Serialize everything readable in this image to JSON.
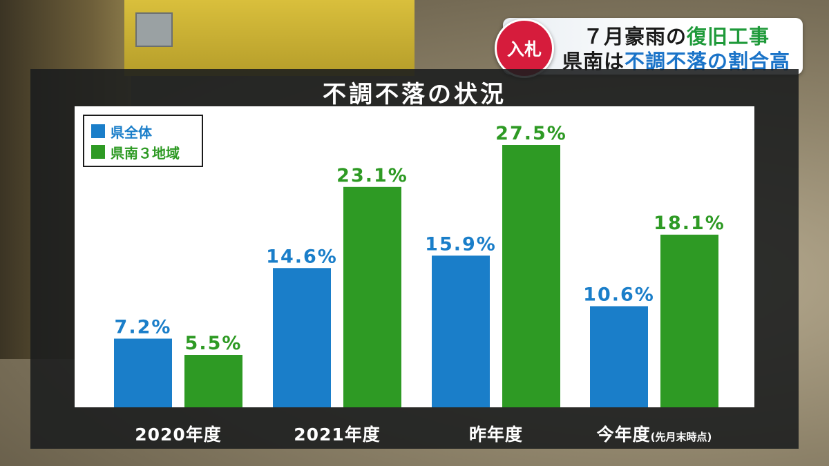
{
  "caption": {
    "tag": "入札",
    "line1_a": "７月豪雨の",
    "line1_b": "復旧工事",
    "line2_a": "県南は",
    "line2_b": "不調不落の割合高"
  },
  "colors": {
    "blue": "#1a7ec9",
    "green": "#2e9a24",
    "tag_red": "#d61c3c"
  },
  "chart_data": {
    "type": "bar",
    "title": "不調不落の状況",
    "categories": [
      "2020年度",
      "2021年度",
      "昨年度",
      "今年度"
    ],
    "category_notes": [
      "",
      "",
      "",
      "(先月末時点)"
    ],
    "series": [
      {
        "name": "県全体",
        "values": [
          7.2,
          14.6,
          15.9,
          10.6
        ],
        "labels": [
          "7.2%",
          "14.6%",
          "15.9%",
          "10.6%"
        ]
      },
      {
        "name": "県南３地域",
        "values": [
          5.5,
          23.1,
          27.5,
          18.1
        ],
        "labels": [
          "5.5%",
          "23.1%",
          "27.5%",
          "18.1%"
        ]
      }
    ],
    "unit": "%",
    "ylim": [
      0,
      30
    ],
    "legend_position": "top-left",
    "grid": false
  }
}
